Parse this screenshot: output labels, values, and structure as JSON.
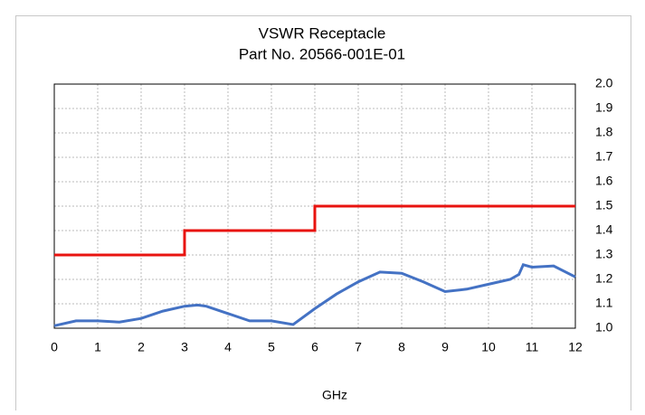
{
  "chart_data": {
    "type": "line",
    "title": "VSWR Receptacle",
    "subtitle": "Part No. 20566-001E-01",
    "x_label": "GHz",
    "xlim": [
      0,
      12
    ],
    "xticks": [
      0,
      1,
      2,
      3,
      4,
      5,
      6,
      7,
      8,
      9,
      10,
      11,
      12
    ],
    "ylim": [
      1.0,
      2.0
    ],
    "yticks": [
      {
        "value": 1.0,
        "label": "1.0"
      },
      1.1,
      1.2,
      1.3,
      1.4,
      1.5,
      1.6,
      1.7,
      1.8,
      1.9,
      {
        "value": 2.0,
        "label": "2.0"
      }
    ],
    "y_axis_side": "right",
    "grid": true,
    "series": [
      {
        "color": "#e8130f",
        "x": [
          0,
          3,
          3,
          6,
          6,
          12
        ],
        "values": [
          1.3,
          1.3,
          1.4,
          1.4,
          1.5,
          1.5
        ]
      },
      {
        "color": "#4472c4",
        "x": [
          0,
          0.5,
          1,
          1.5,
          2,
          2.5,
          3,
          3.3,
          3.5,
          4,
          4.5,
          5,
          5.5,
          6,
          6.5,
          7,
          7.5,
          8,
          8.5,
          9,
          9.5,
          10,
          10.5,
          10.7,
          10.8,
          11,
          11.5,
          12
        ],
        "values": [
          1.01,
          1.03,
          1.03,
          1.025,
          1.04,
          1.07,
          1.09,
          1.095,
          1.09,
          1.06,
          1.03,
          1.03,
          1.015,
          1.08,
          1.14,
          1.19,
          1.23,
          1.225,
          1.19,
          1.15,
          1.16,
          1.18,
          1.2,
          1.22,
          1.26,
          1.25,
          1.255,
          1.21
        ]
      }
    ]
  }
}
